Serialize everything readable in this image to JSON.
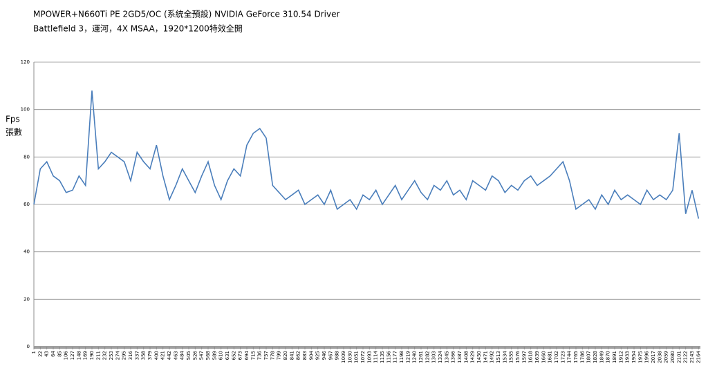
{
  "chart_data": {
    "type": "line",
    "title": "MPOWER+N660Ti PE 2GD5/OC (系統全預設) NVIDIA GeForce 310.54 Driver",
    "subtitle": "Battlefield 3，運河，4X MSAA，1920*1200特效全開",
    "ylabel": [
      "Fps",
      "張數"
    ],
    "x": [
      1,
      22,
      43,
      64,
      85,
      106,
      127,
      148,
      169,
      190,
      211,
      232,
      253,
      274,
      295,
      316,
      337,
      358,
      379,
      400,
      421,
      442,
      463,
      484,
      505,
      526,
      547,
      568,
      589,
      610,
      631,
      652,
      673,
      694,
      715,
      736,
      757,
      778,
      799,
      820,
      841,
      862,
      883,
      904,
      925,
      946,
      967,
      988,
      1009,
      1030,
      1051,
      1072,
      1093,
      1114,
      1135,
      1156,
      1177,
      1198,
      1219,
      1240,
      1261,
      1282,
      1303,
      1324,
      1345,
      1366,
      1387,
      1408,
      1429,
      1450,
      1471,
      1492,
      1513,
      1534,
      1555,
      1576,
      1597,
      1618,
      1639,
      1660,
      1681,
      1702,
      1723,
      1744,
      1765,
      1786,
      1807,
      1828,
      1849,
      1870,
      1891,
      1912,
      1933,
      1954,
      1975,
      1996,
      2017,
      2038,
      2059,
      2080,
      2101,
      2122,
      2143,
      2164
    ],
    "series": [
      {
        "color": "#4a7ebb",
        "values": [
          60,
          75,
          78,
          72,
          70,
          65,
          66,
          72,
          68,
          108,
          75,
          78,
          82,
          80,
          78,
          70,
          82,
          78,
          75,
          85,
          72,
          62,
          68,
          75,
          70,
          65,
          72,
          78,
          68,
          62,
          70,
          75,
          72,
          85,
          90,
          92,
          88,
          68,
          65,
          62,
          64,
          66,
          60,
          62,
          64,
          60,
          66,
          58,
          60,
          62,
          58,
          64,
          62,
          66,
          60,
          64,
          68,
          62,
          66,
          70,
          65,
          62,
          68,
          66,
          70,
          64,
          66,
          62,
          70,
          68,
          66,
          72,
          70,
          65,
          68,
          66,
          70,
          72,
          68,
          70,
          72,
          75,
          78,
          70,
          58,
          60,
          62,
          58,
          64,
          60,
          66,
          62,
          64,
          62,
          60,
          66,
          62,
          64,
          62,
          66,
          90,
          56,
          66,
          54
        ]
      }
    ],
    "xlim": [
      1,
      2170
    ],
    "xticks": [
      1,
      22,
      43,
      64,
      85,
      106,
      127,
      148,
      169,
      190,
      211,
      232,
      253,
      274,
      295,
      316,
      337,
      358,
      379,
      400,
      421,
      442,
      463,
      484,
      505,
      526,
      547,
      568,
      589,
      610,
      631,
      652,
      673,
      694,
      715,
      736,
      757,
      778,
      799,
      820,
      841,
      862,
      883,
      904,
      925,
      946,
      967,
      988,
      1009,
      1030,
      1051,
      1072,
      1093,
      1114,
      1135,
      1156,
      1177,
      1198,
      1219,
      1240,
      1261,
      1282,
      1303,
      1324,
      1345,
      1366,
      1387,
      1408,
      1429,
      1450,
      1471,
      1492,
      1513,
      1534,
      1555,
      1576,
      1597,
      1618,
      1639,
      1660,
      1681,
      1702,
      1723,
      1744,
      1765,
      1786,
      1807,
      1828,
      1849,
      1870,
      1891,
      1912,
      1933,
      1954,
      1975,
      1996,
      2017,
      2038,
      2059,
      2080,
      2101,
      2122,
      2143,
      2164
    ],
    "ylim": [
      0,
      120
    ],
    "yticks": [
      0,
      20,
      40,
      60,
      80,
      100,
      120
    ],
    "grid": true
  }
}
